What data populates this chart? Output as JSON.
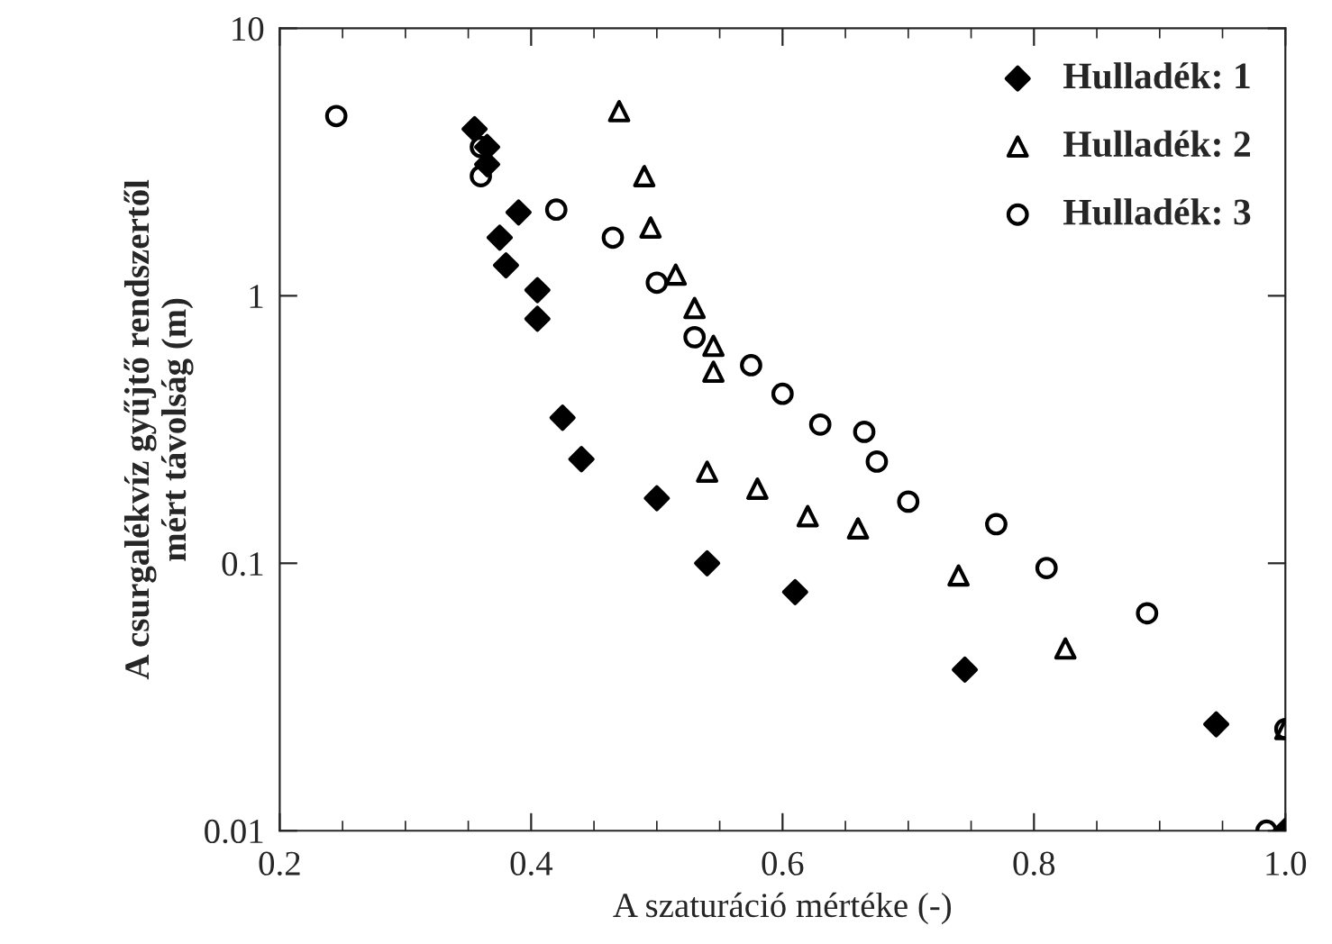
{
  "chart_data": {
    "type": "scatter",
    "xlabel": "A szaturáció mértéke (-)",
    "ylabel": "A csurgalékvíz gyűjtő rendszertől\nmért távolság (m)",
    "log": "y",
    "xlim": [
      0.2,
      1.0
    ],
    "xticks": [
      0.2,
      0.4,
      0.6,
      0.8,
      {
        "value": 1.0,
        "label": "1.0"
      }
    ],
    "ylim": [
      0.01,
      10
    ],
    "yticks": [
      0.01,
      0.1,
      1,
      10
    ],
    "legend": "top right",
    "grid": false,
    "series": [
      {
        "name": "Hulladék: 1",
        "color": "#000000",
        "marker": "diamond",
        "x": [
          0.355,
          0.365,
          0.365,
          0.39,
          0.375,
          0.38,
          0.405,
          0.405,
          0.425,
          0.44,
          0.5,
          0.54,
          0.61,
          0.745,
          0.945,
          1.0
        ],
        "values": [
          4.2,
          3.6,
          3.1,
          2.05,
          1.65,
          1.3,
          1.05,
          0.82,
          0.35,
          0.245,
          0.175,
          0.1,
          0.078,
          0.04,
          0.025,
          0.01
        ]
      },
      {
        "name": "Hulladék: 2",
        "color": "#000000",
        "marker": "triangle",
        "x": [
          0.47,
          0.49,
          0.495,
          0.515,
          0.53,
          0.545,
          0.545,
          0.54,
          0.58,
          0.62,
          0.66,
          0.74,
          0.825,
          1.0
        ],
        "values": [
          4.9,
          2.8,
          1.8,
          1.2,
          0.9,
          0.65,
          0.52,
          0.22,
          0.19,
          0.15,
          0.135,
          0.09,
          0.048,
          0.024
        ]
      },
      {
        "name": "Hulladék: 3",
        "color": "#000000",
        "marker": "circle",
        "x": [
          0.245,
          0.36,
          0.36,
          0.42,
          0.465,
          0.5,
          0.53,
          0.575,
          0.6,
          0.63,
          0.665,
          0.675,
          0.7,
          0.77,
          0.81,
          0.89,
          0.985,
          1.0
        ],
        "values": [
          4.7,
          3.6,
          2.8,
          2.1,
          1.65,
          1.12,
          0.7,
          0.55,
          0.43,
          0.33,
          0.31,
          0.24,
          0.17,
          0.14,
          0.096,
          0.065,
          0.01,
          0.024
        ]
      }
    ]
  }
}
